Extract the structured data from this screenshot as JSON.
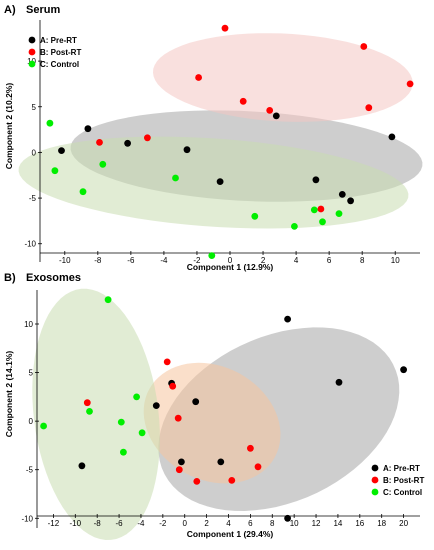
{
  "chart_data": [
    {
      "type": "scatter",
      "panel": "A)",
      "title": "Serum",
      "xlabel": "Component 1 (12.9%)",
      "ylabel": "Component 2 (10.2%)",
      "xlim": [
        -11.5,
        11.5
      ],
      "ylim": [
        -12,
        14.5
      ],
      "xticks": [
        -10,
        -8,
        -6,
        -4,
        -2,
        0,
        2,
        4,
        6,
        8,
        10
      ],
      "yticks": [
        -10,
        -5,
        0,
        5,
        10
      ],
      "legend_position": "top-left",
      "grid": false,
      "series": [
        {
          "name": "A: Pre-RT",
          "color": "#000000",
          "ellipse_color": "#a6a6a6",
          "points": [
            [
              -10.2,
              0.2
            ],
            [
              -8.6,
              2.6
            ],
            [
              -6.2,
              1.0
            ],
            [
              -2.6,
              0.3
            ],
            [
              -0.6,
              -3.2
            ],
            [
              2.8,
              4.0
            ],
            [
              5.2,
              -3.0
            ],
            [
              6.8,
              -4.6
            ],
            [
              7.3,
              -5.3
            ],
            [
              9.8,
              1.7
            ]
          ]
        },
        {
          "name": "B: Post-RT",
          "color": "#ff0000",
          "ellipse_color": "#f4c7c3",
          "points": [
            [
              -7.9,
              1.1
            ],
            [
              -5.0,
              1.6
            ],
            [
              -1.9,
              8.2
            ],
            [
              -0.3,
              13.6
            ],
            [
              0.8,
              5.6
            ],
            [
              2.4,
              4.6
            ],
            [
              5.5,
              -6.2
            ],
            [
              8.1,
              11.6
            ],
            [
              8.4,
              4.9
            ],
            [
              10.9,
              7.5
            ]
          ]
        },
        {
          "name": "C: Control",
          "color": "#00ee00",
          "ellipse_color": "#c9ddb0",
          "points": [
            [
              -10.9,
              3.2
            ],
            [
              -10.6,
              -2.0
            ],
            [
              -8.9,
              -4.3
            ],
            [
              -7.7,
              -1.3
            ],
            [
              -3.3,
              -2.8
            ],
            [
              -1.1,
              -11.3
            ],
            [
              1.5,
              -7.0
            ],
            [
              3.9,
              -8.1
            ],
            [
              5.1,
              -6.3
            ],
            [
              5.6,
              -7.6
            ],
            [
              6.6,
              -6.7
            ]
          ]
        }
      ]
    },
    {
      "type": "scatter",
      "panel": "B)",
      "title": "Exosomes",
      "xlabel": "Component 1 (29.4%)",
      "ylabel": "Component 2 (14.1%)",
      "xlim": [
        -13.5,
        21.5
      ],
      "ylim": [
        -11,
        13.5
      ],
      "xticks": [
        -12,
        -10,
        -8,
        -6,
        -4,
        -2,
        0,
        2,
        4,
        6,
        8,
        10,
        12,
        14,
        16,
        18,
        20
      ],
      "yticks": [
        -10,
        -5,
        0,
        5,
        10
      ],
      "legend_position": "bottom-right",
      "grid": false,
      "series": [
        {
          "name": "A: Pre-RT",
          "color": "#000000",
          "ellipse_color": "#a6a6a6",
          "points": [
            [
              -9.4,
              -4.6
            ],
            [
              -2.6,
              1.6
            ],
            [
              -1.2,
              3.9
            ],
            [
              -0.3,
              -4.2
            ],
            [
              1.0,
              2.0
            ],
            [
              3.3,
              -4.2
            ],
            [
              9.4,
              10.5
            ],
            [
              9.4,
              -10.0
            ],
            [
              14.1,
              4.0
            ],
            [
              20.0,
              5.3
            ]
          ]
        },
        {
          "name": "B: Post-RT",
          "color": "#ff0000",
          "ellipse_color": "#f6c49e",
          "points": [
            [
              -8.9,
              1.9
            ],
            [
              -1.6,
              6.1
            ],
            [
              -1.1,
              3.6
            ],
            [
              -0.6,
              0.3
            ],
            [
              -0.5,
              -5.0
            ],
            [
              1.1,
              -6.2
            ],
            [
              4.3,
              -6.1
            ],
            [
              6.0,
              -2.8
            ],
            [
              6.7,
              -4.7
            ]
          ]
        },
        {
          "name": "C: Control",
          "color": "#00ee00",
          "ellipse_color": "#c9ddb0",
          "points": [
            [
              -12.9,
              -0.5
            ],
            [
              -8.7,
              1.0
            ],
            [
              -7.0,
              12.5
            ],
            [
              -5.8,
              -0.1
            ],
            [
              -5.6,
              -3.2
            ],
            [
              -4.4,
              2.5
            ],
            [
              -3.9,
              -1.2
            ]
          ]
        }
      ]
    }
  ]
}
